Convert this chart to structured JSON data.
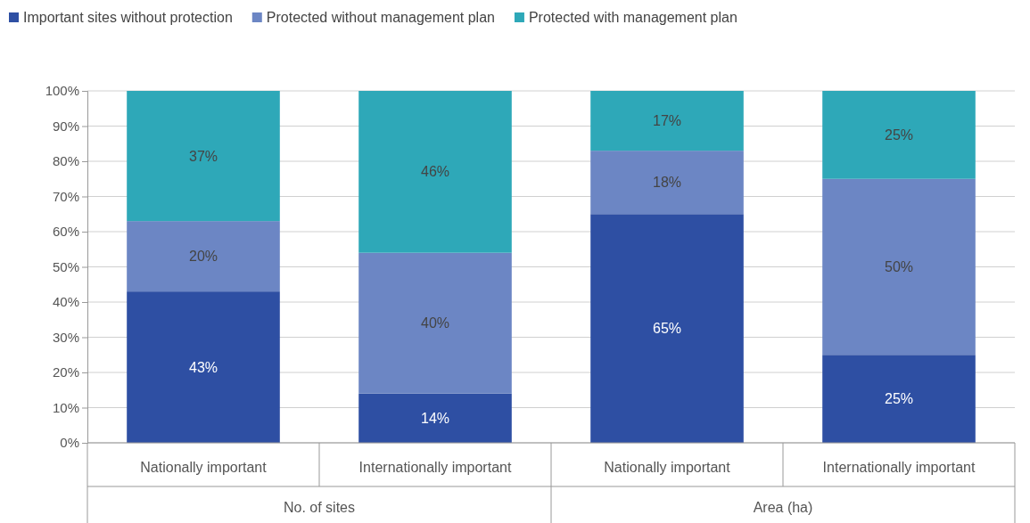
{
  "chart_data": {
    "type": "bar",
    "stacked": true,
    "categories": [
      "Nationally important",
      "Internationally important",
      "Nationally important",
      "Internationally important"
    ],
    "series": [
      {
        "name": "Important sites without protection",
        "color": "#2e4fa3",
        "values": [
          43,
          14,
          65,
          25
        ],
        "value_labels": [
          "43%",
          "14%",
          "65%",
          "25%"
        ]
      },
      {
        "name": "Protected without management plan",
        "color": "#6c86c4",
        "values": [
          20,
          40,
          18,
          50
        ],
        "value_labels": [
          "20%",
          "40%",
          "18%",
          "50%"
        ]
      },
      {
        "name": "Protected with management plan",
        "color": "#2ea8b8",
        "values": [
          37,
          46,
          17,
          25
        ],
        "value_labels": [
          "37%",
          "46%",
          "17%",
          "25%"
        ]
      }
    ],
    "ylim": [
      0,
      100
    ],
    "yticks": [
      {
        "value": 0,
        "label": "0%"
      },
      {
        "value": 10,
        "label": "10%"
      },
      {
        "value": 20,
        "label": "20%"
      },
      {
        "value": 30,
        "label": "30%"
      },
      {
        "value": 40,
        "label": "40%"
      },
      {
        "value": 50,
        "label": "50%"
      },
      {
        "value": 60,
        "label": "60%"
      },
      {
        "value": 70,
        "label": "70%"
      },
      {
        "value": 80,
        "label": "80%"
      },
      {
        "value": 90,
        "label": "90%"
      },
      {
        "value": 100,
        "label": "100%"
      }
    ],
    "annotations": [
      "No. of sites",
      "Area (ha)"
    ],
    "grid": "y",
    "legend": "top"
  }
}
